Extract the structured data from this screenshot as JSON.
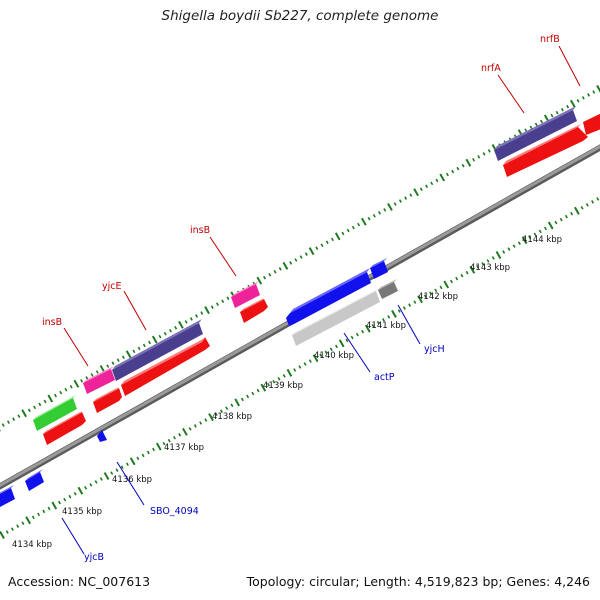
{
  "title": "Shigella boydii Sb227, complete genome",
  "accession": "Accession: NC_007613",
  "summary": "Topology: circular; Length: 4,519,823 bp; Genes: 4,246",
  "colors": {
    "backbone": "#8a8a8a",
    "tick": "#1e7a1e",
    "label_forward": "#c00000",
    "label_reverse": "#0000c0",
    "red": "#ee1111",
    "purple": "#4a3f8f",
    "magenta": "#ee2299",
    "green": "#33cc33",
    "blue": "#1111ee",
    "gray": "#c8c8c8",
    "dark_gray": "#777777"
  },
  "ruler": {
    "unit": "kbp",
    "labels": [
      "4134 kbp",
      "4135 kbp",
      "4136 kbp",
      "4137 kbp",
      "4138 kbp",
      "4139 kbp",
      "4140 kbp",
      "4141 kbp",
      "4142 kbp",
      "4143 kbp",
      "4144 kbp"
    ]
  },
  "gene_labels": [
    {
      "name": "nrfB",
      "strand": "forward"
    },
    {
      "name": "nrfA",
      "strand": "forward"
    },
    {
      "name": "insB",
      "strand": "forward"
    },
    {
      "name": "yjcE",
      "strand": "forward"
    },
    {
      "name": "insB",
      "strand": "forward"
    },
    {
      "name": "yjcH",
      "strand": "reverse"
    },
    {
      "name": "actP",
      "strand": "reverse"
    },
    {
      "name": "SBO_4094",
      "strand": "reverse"
    },
    {
      "name": "yjcB",
      "strand": "reverse"
    }
  ]
}
